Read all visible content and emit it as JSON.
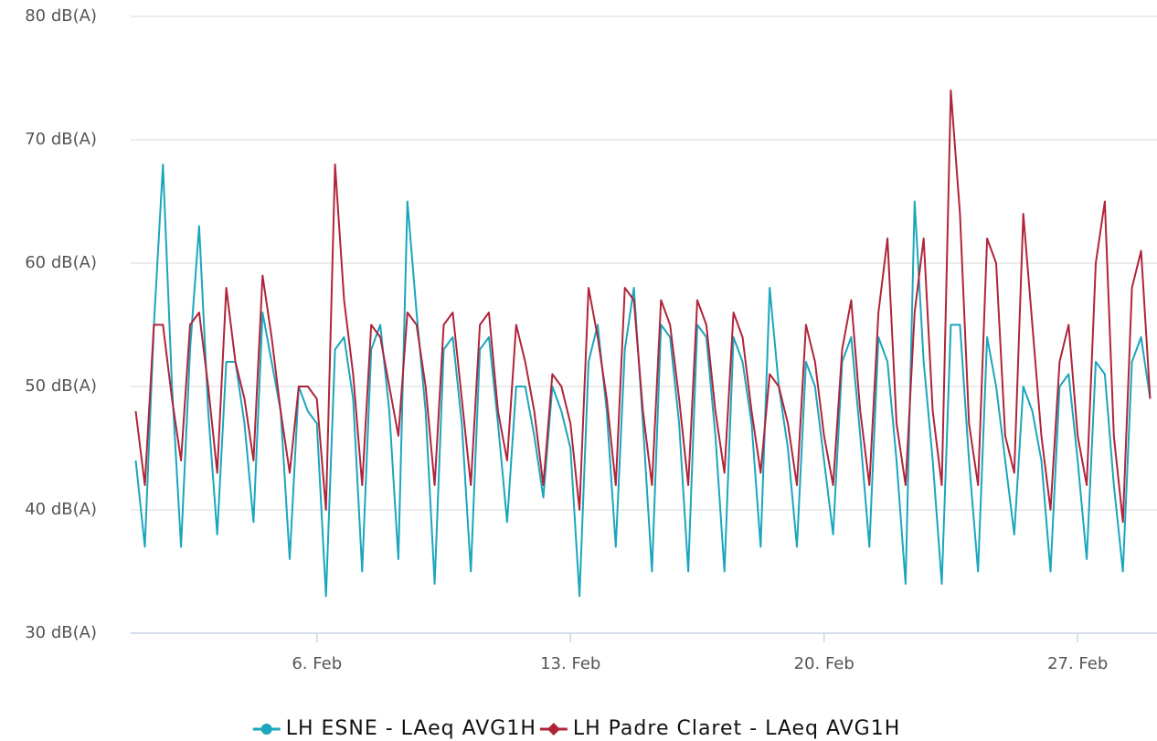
{
  "chart_data": {
    "type": "line",
    "x": [
      1,
      1.25,
      1.5,
      1.75,
      2,
      2.25,
      2.5,
      2.75,
      3,
      3.25,
      3.5,
      3.75,
      4,
      4.25,
      4.5,
      4.75,
      5,
      5.25,
      5.5,
      5.75,
      6,
      6.25,
      6.5,
      6.75,
      7,
      7.25,
      7.5,
      7.75,
      8,
      8.25,
      8.5,
      8.75,
      9,
      9.25,
      9.5,
      9.75,
      10,
      10.25,
      10.5,
      10.75,
      11,
      11.25,
      11.5,
      11.75,
      12,
      12.25,
      12.5,
      12.75,
      13,
      13.25,
      13.5,
      13.75,
      14,
      14.25,
      14.5,
      14.75,
      15,
      15.25,
      15.5,
      15.75,
      16,
      16.25,
      16.5,
      16.75,
      17,
      17.25,
      17.5,
      17.75,
      18,
      18.25,
      18.5,
      18.75,
      19,
      19.25,
      19.5,
      19.75,
      20,
      20.25,
      20.5,
      20.75,
      21,
      21.25,
      21.5,
      21.75,
      22,
      22.25,
      22.5,
      22.75,
      23,
      23.25,
      23.5,
      23.75,
      24,
      24.25,
      24.5,
      24.75,
      25,
      25.25,
      25.5,
      25.75,
      26,
      26.25,
      26.5,
      26.75,
      27,
      27.25,
      27.5,
      27.75,
      28,
      28.25,
      28.5,
      28.75,
      29
    ],
    "series": [
      {
        "name": "LH ESNE - LAeq AVG1H",
        "color": "#1ba6bd",
        "marker": "circle",
        "values": [
          44,
          37,
          55,
          68,
          50,
          37,
          53,
          63,
          48,
          38,
          52,
          52,
          47,
          39,
          56,
          52,
          48,
          36,
          50,
          48,
          47,
          33,
          53,
          54,
          49,
          35,
          53,
          55,
          48,
          36,
          65,
          56,
          48,
          34,
          53,
          54,
          47,
          35,
          53,
          54,
          47,
          39,
          50,
          50,
          46,
          41,
          50,
          48,
          45,
          33,
          52,
          55,
          48,
          37,
          53,
          58,
          47,
          35,
          55,
          54,
          47,
          35,
          55,
          54,
          46,
          35,
          54,
          52,
          47,
          37,
          58,
          50,
          45,
          37,
          52,
          50,
          44,
          38,
          52,
          54,
          46,
          37,
          54,
          52,
          44,
          34,
          65,
          52,
          44,
          34,
          55,
          55,
          44,
          35,
          54,
          50,
          44,
          38,
          50,
          48,
          44,
          35,
          50,
          51,
          44,
          36,
          52,
          51,
          42,
          35,
          52,
          54,
          49
        ]
      },
      {
        "name": "LH Padre Claret - LAeq AVG1H",
        "color": "#b0243a",
        "marker": "diamond",
        "values": [
          48,
          42,
          55,
          55,
          49,
          44,
          55,
          56,
          50,
          43,
          58,
          52,
          49,
          44,
          59,
          54,
          48,
          43,
          50,
          50,
          49,
          40,
          68,
          57,
          51,
          42,
          55,
          54,
          50,
          46,
          56,
          55,
          50,
          42,
          55,
          56,
          49,
          42,
          55,
          56,
          48,
          44,
          55,
          52,
          48,
          42,
          51,
          50,
          47,
          40,
          58,
          54,
          49,
          42,
          58,
          57,
          48,
          42,
          57,
          55,
          49,
          42,
          57,
          55,
          48,
          43,
          56,
          54,
          48,
          43,
          51,
          50,
          47,
          42,
          55,
          52,
          46,
          42,
          53,
          57,
          48,
          42,
          56,
          62,
          47,
          42,
          56,
          62,
          48,
          42,
          74,
          64,
          47,
          42,
          62,
          60,
          46,
          43,
          64,
          55,
          46,
          40,
          52,
          55,
          46,
          42,
          60,
          65,
          46,
          39,
          58,
          61,
          49
        ]
      }
    ],
    "xlim": [
      0.86,
      29.19
    ],
    "xticks": [
      {
        "value": 6,
        "label": "6. Feb"
      },
      {
        "value": 13,
        "label": "13. Feb"
      },
      {
        "value": 20,
        "label": "20. Feb"
      },
      {
        "value": 27,
        "label": "27. Feb"
      }
    ],
    "ylim": [
      30,
      80
    ],
    "yticks": [
      {
        "value": 30,
        "label": "30 dB(A)"
      },
      {
        "value": 40,
        "label": "40 dB(A)"
      },
      {
        "value": 50,
        "label": "50 dB(A)"
      },
      {
        "value": 60,
        "label": "60 dB(A)"
      },
      {
        "value": 70,
        "label": "70 dB(A)"
      },
      {
        "value": 80,
        "label": "80 dB(A)"
      }
    ],
    "grid": true,
    "legend": "bottom"
  }
}
